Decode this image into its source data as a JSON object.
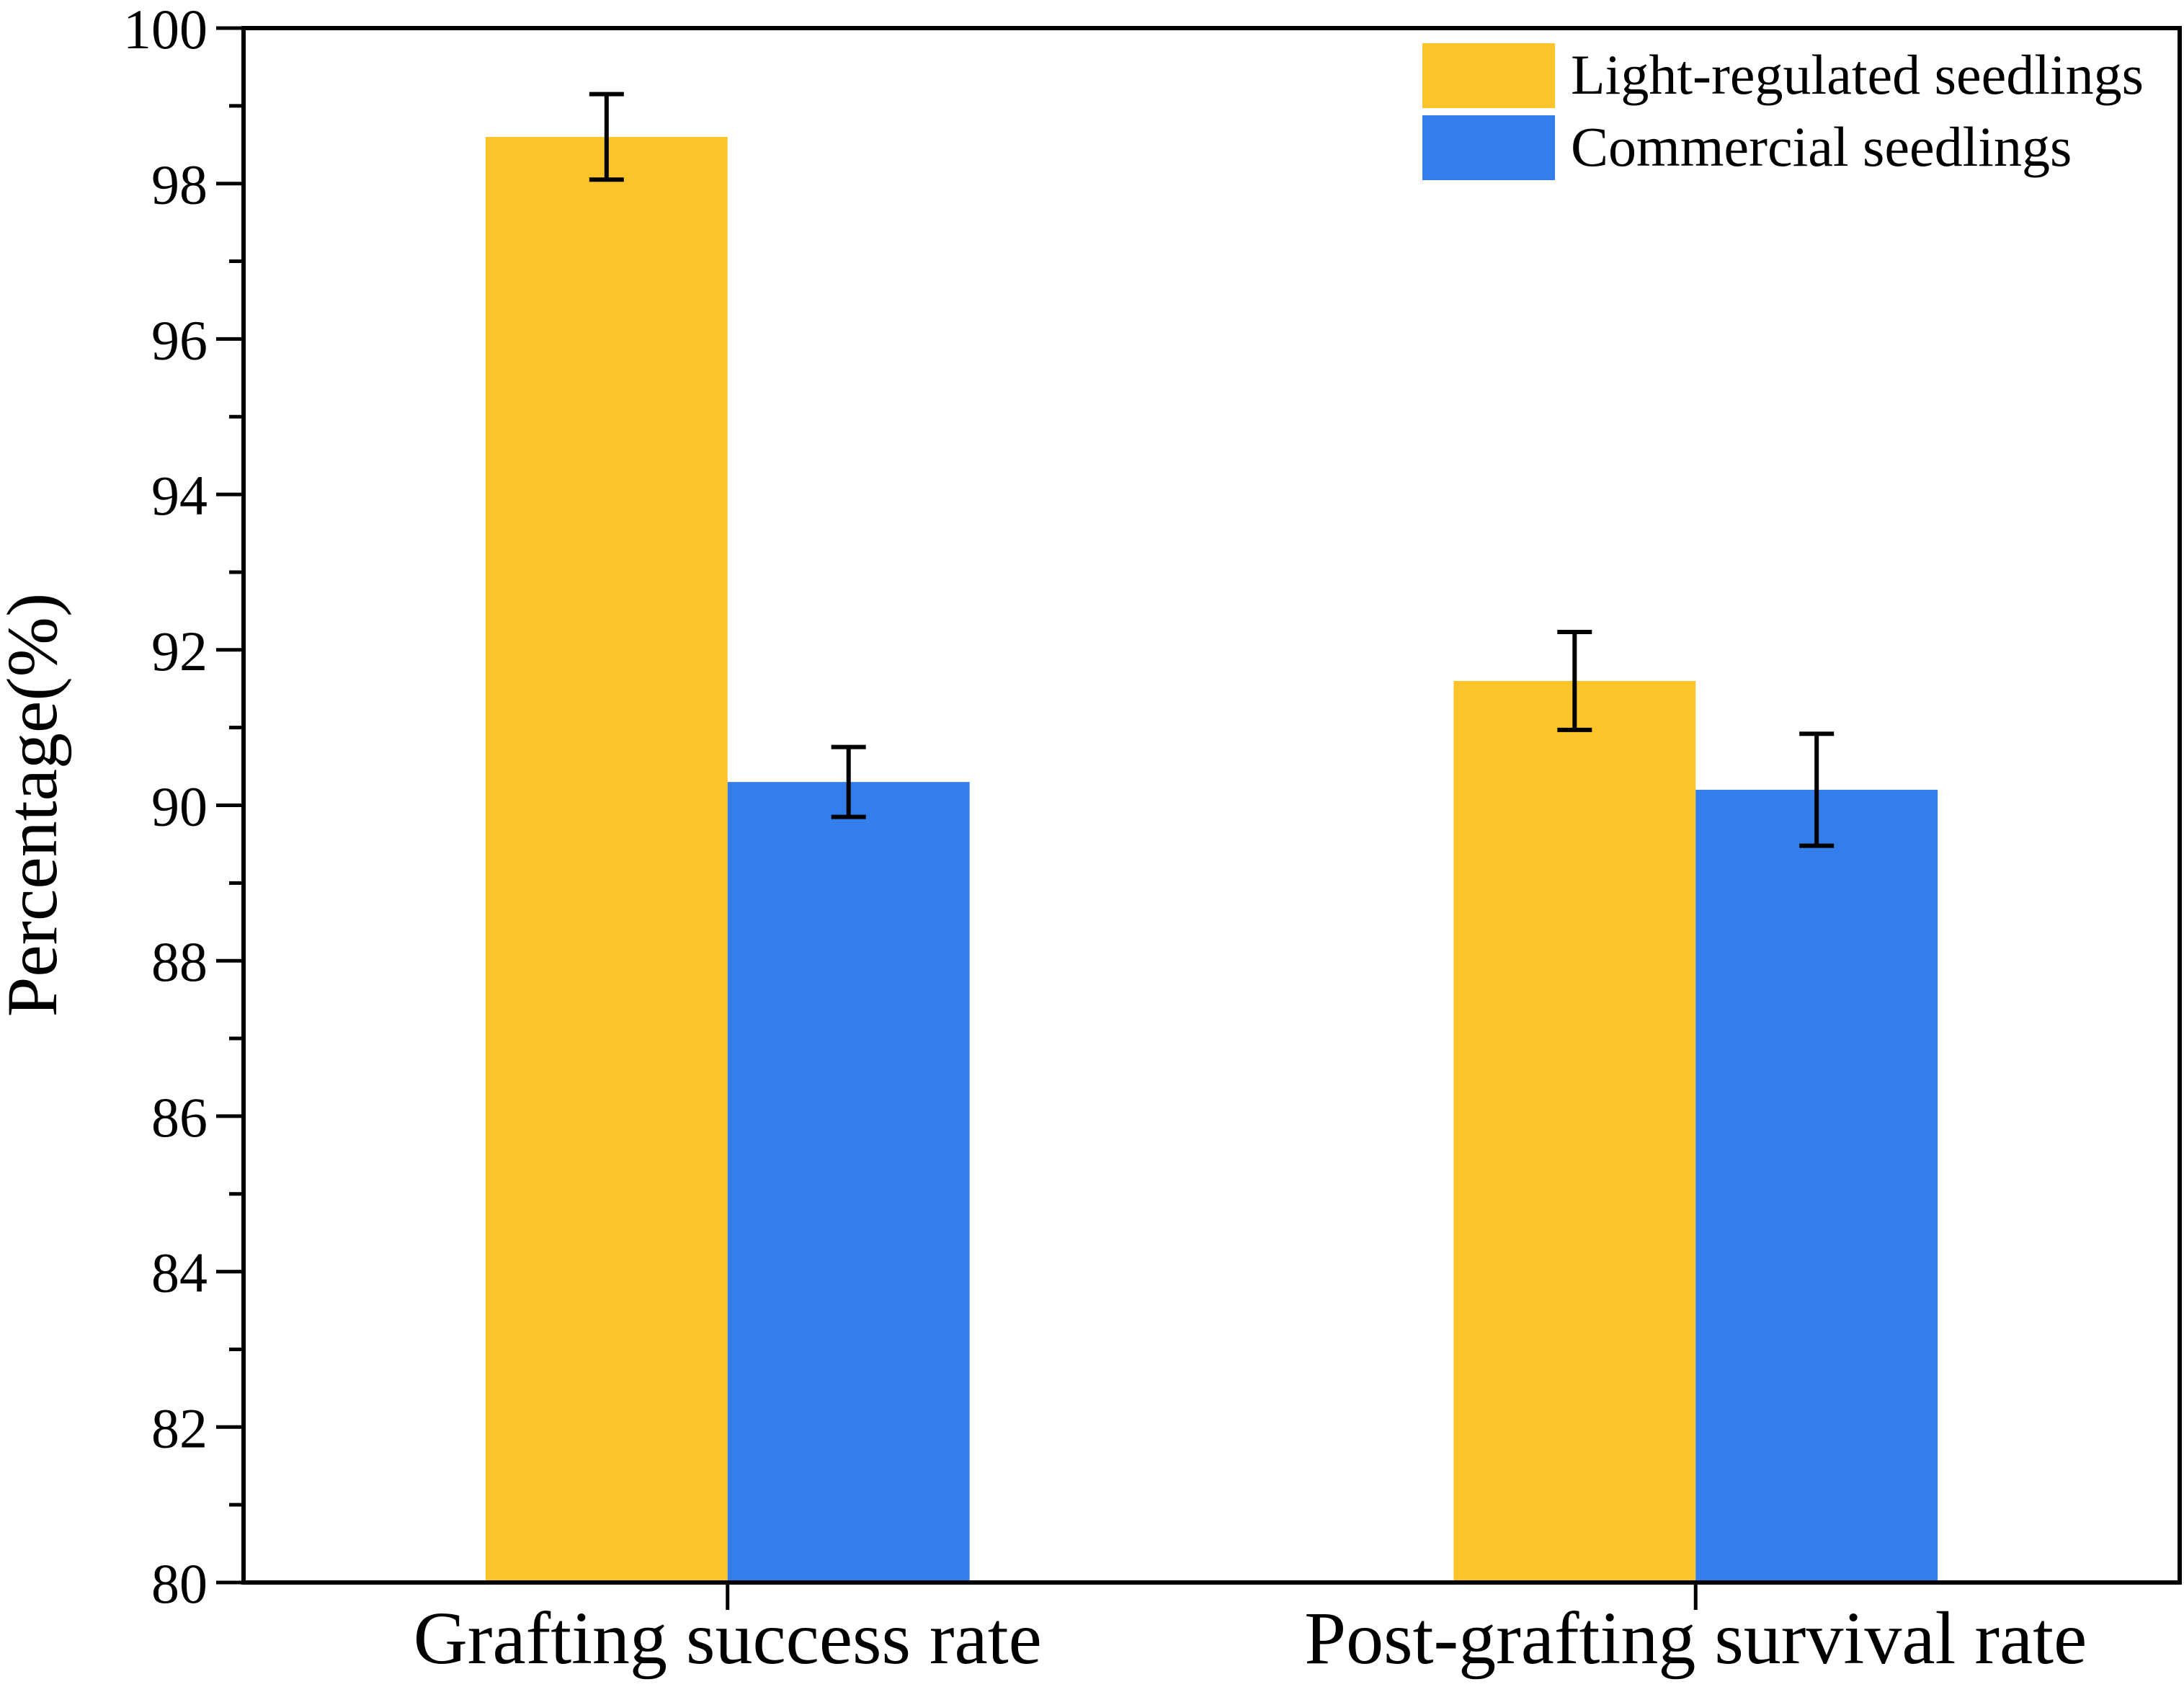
{
  "chart_data": {
    "type": "bar",
    "title": "",
    "xlabel": "",
    "ylabel": "Percentage(%)",
    "ylim": [
      80,
      100
    ],
    "yticks": [
      80,
      82,
      84,
      86,
      88,
      90,
      92,
      94,
      96,
      98,
      100
    ],
    "categories": [
      "Grafting success rate",
      "Post-grafting survival rate"
    ],
    "series": [
      {
        "name": "Light-regulated seedlings",
        "color": "#FAC42A",
        "values": [
          98.6,
          91.6
        ],
        "errors": [
          0.55,
          0.63
        ]
      },
      {
        "name": "Commercial seedlings",
        "color": "#347EEC",
        "values": [
          90.3,
          90.2
        ],
        "errors": [
          0.45,
          0.72
        ]
      }
    ],
    "legend_position": "top-right",
    "grid": false
  }
}
